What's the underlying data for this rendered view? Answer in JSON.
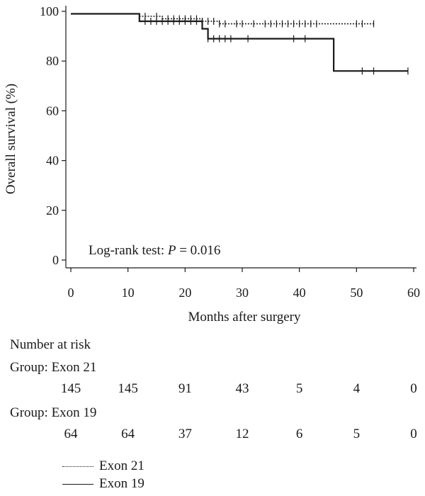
{
  "chart_data": {
    "type": "line",
    "subtype": "kaplan-meier",
    "title": "",
    "xlabel": "Months after surgery",
    "ylabel": "Overall survival (%)",
    "xlim": [
      0,
      60
    ],
    "ylim": [
      0,
      100
    ],
    "xticks": [
      "0",
      "10",
      "20",
      "30",
      "40",
      "50",
      "60"
    ],
    "yticks": [
      "0",
      "20",
      "40",
      "60",
      "80",
      "100"
    ],
    "grid": false,
    "annotation": "Log-rank test: P = 0.016",
    "series": [
      {
        "name": "Exon 21",
        "style": "dotted",
        "steps": [
          [
            0,
            99
          ],
          [
            12,
            99
          ],
          [
            12,
            98
          ],
          [
            16,
            98
          ],
          [
            16,
            97
          ],
          [
            23,
            97
          ],
          [
            23,
            96
          ],
          [
            26,
            96
          ],
          [
            26,
            95
          ],
          [
            53,
            95
          ]
        ],
        "censored": [
          13,
          15,
          17,
          18,
          19,
          20,
          21,
          22,
          23,
          24,
          25,
          26,
          27,
          29,
          30,
          32,
          34,
          35,
          36,
          37,
          38,
          39,
          40,
          41,
          42,
          43,
          50,
          51,
          53
        ]
      },
      {
        "name": "Exon 19",
        "style": "solid",
        "steps": [
          [
            0,
            99
          ],
          [
            12,
            99
          ],
          [
            12,
            96
          ],
          [
            23,
            96
          ],
          [
            23,
            93
          ],
          [
            24,
            93
          ],
          [
            24,
            89
          ],
          [
            46,
            89
          ],
          [
            46,
            76
          ],
          [
            59,
            76
          ]
        ],
        "censored": [
          13,
          14,
          15,
          16,
          17,
          18,
          19,
          20,
          21,
          22,
          24,
          25,
          26,
          27,
          28,
          31,
          39,
          41,
          51,
          53,
          59
        ]
      }
    ]
  },
  "risk_table": {
    "title": "Number at risk",
    "groups": [
      {
        "label": "Group: Exon 21",
        "counts": [
          "145",
          "145",
          "91",
          "43",
          "5",
          "4",
          "0"
        ]
      },
      {
        "label": "Group: Exon 19",
        "counts": [
          "64",
          "64",
          "37",
          "12",
          "6",
          "5",
          "0"
        ]
      }
    ]
  },
  "legend": [
    {
      "label": "Exon 21",
      "style": "dotted"
    },
    {
      "label": "Exon 19",
      "style": "solid"
    }
  ]
}
